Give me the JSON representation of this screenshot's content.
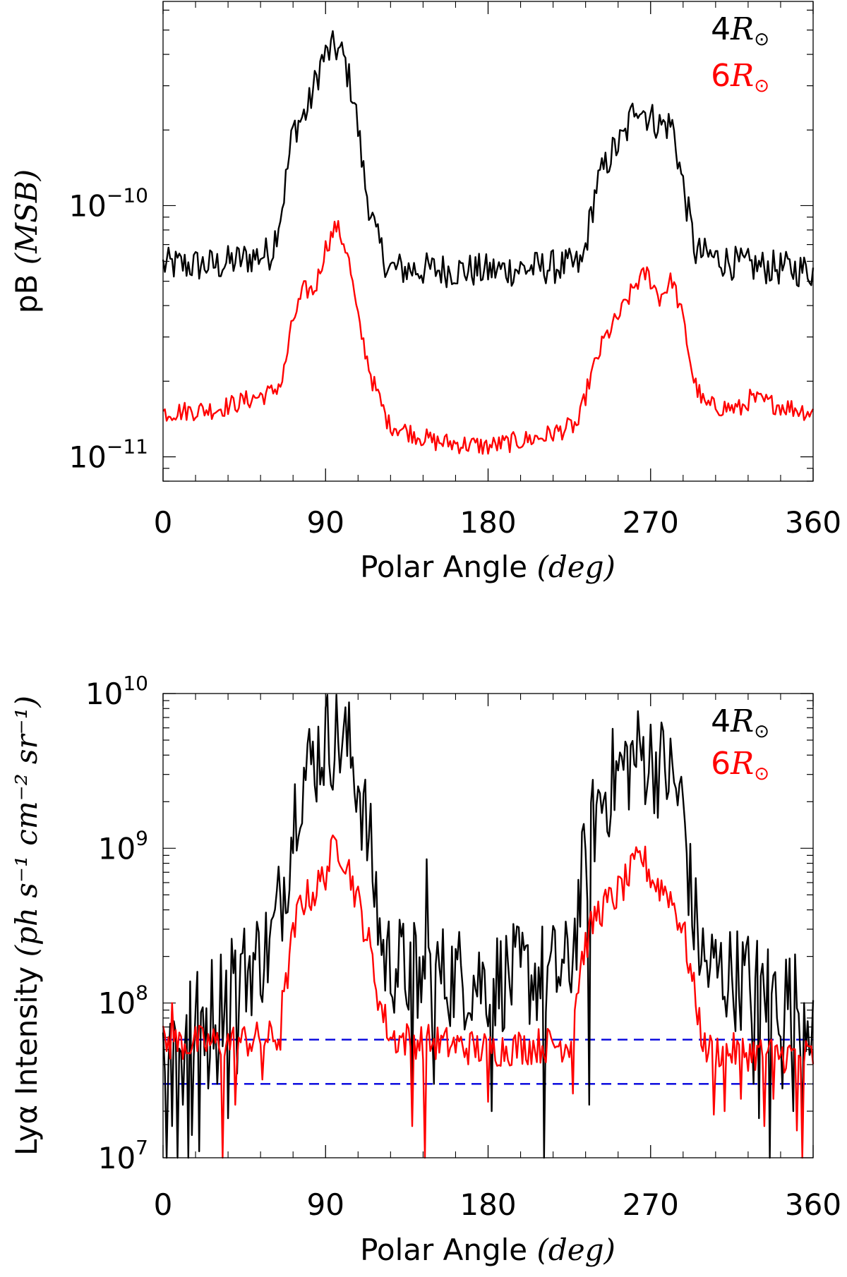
{
  "colors": {
    "black": "#000000",
    "red": "#ff0000",
    "blue": "#0000dd"
  },
  "chart_data": [
    {
      "type": "line",
      "yscale": "log",
      "xlabel_prefix": "Polar Angle ",
      "xlabel_unit": "(deg)",
      "ylabel_prefix": "pB ",
      "ylabel_unit": "(MSB)",
      "xlim": [
        0,
        360
      ],
      "ylim": [
        8e-12,
        6.5e-10
      ],
      "xticks": [
        0,
        90,
        180,
        270,
        360
      ],
      "xtick_labels": [
        "0",
        "90",
        "180",
        "270",
        "360"
      ],
      "yticks_major": [
        {
          "value": 1e-10,
          "base": "10",
          "exp": "−10"
        },
        {
          "value": 1e-11,
          "base": "10",
          "exp": "−11"
        }
      ],
      "legend": [
        {
          "coef": "4",
          "unit": "R",
          "sub": "⊙",
          "color": "#000000"
        },
        {
          "coef": "6",
          "unit": "R",
          "sub": "⊙",
          "color": "#ff0000"
        }
      ],
      "series": [
        {
          "name": "4R⊙",
          "color": "#000000",
          "profile": [
            [
              0,
              5.8e-11
            ],
            [
              30,
              5.8e-11
            ],
            [
              60,
              6.5e-11
            ],
            [
              66,
              1e-10
            ],
            [
              72,
              2e-10
            ],
            [
              80,
              2.4e-10
            ],
            [
              88,
              3.8e-10
            ],
            [
              95,
              4.3e-10
            ],
            [
              100,
              3.9e-10
            ],
            [
              106,
              2.6e-10
            ],
            [
              112,
              1.2e-10
            ],
            [
              118,
              7.5e-11
            ],
            [
              125,
              5.6e-11
            ],
            [
              180,
              5.5e-11
            ],
            [
              232,
              5.8e-11
            ],
            [
              240,
              1.2e-10
            ],
            [
              248,
              1.6e-10
            ],
            [
              256,
              1.9e-10
            ],
            [
              262,
              2.6e-10
            ],
            [
              268,
              2.3e-10
            ],
            [
              275,
              2.1e-10
            ],
            [
              282,
              2.1e-10
            ],
            [
              288,
              1.2e-10
            ],
            [
              295,
              6.5e-11
            ],
            [
              320,
              5.8e-11
            ],
            [
              360,
              5.5e-11
            ]
          ],
          "noise": 0.07
        },
        {
          "name": "6R⊙",
          "color": "#ff0000",
          "profile": [
            [
              0,
              1.5e-11
            ],
            [
              30,
              1.55e-11
            ],
            [
              60,
              1.8e-11
            ],
            [
              66,
              2e-11
            ],
            [
              72,
              3.5e-11
            ],
            [
              78,
              4.6e-11
            ],
            [
              84,
              4.6e-11
            ],
            [
              90,
              6.8e-11
            ],
            [
              96,
              8.3e-11
            ],
            [
              102,
              6.6e-11
            ],
            [
              108,
              3.5e-11
            ],
            [
              116,
              2e-11
            ],
            [
              125,
              1.35e-11
            ],
            [
              150,
              1.15e-11
            ],
            [
              180,
              1.1e-11
            ],
            [
              210,
              1.2e-11
            ],
            [
              230,
              1.35e-11
            ],
            [
              236,
              2e-11
            ],
            [
              244,
              2.9e-11
            ],
            [
              254,
              3.8e-11
            ],
            [
              262,
              4.9e-11
            ],
            [
              268,
              5.4e-11
            ],
            [
              275,
              4.3e-11
            ],
            [
              282,
              5.1e-11
            ],
            [
              288,
              3.5e-11
            ],
            [
              294,
              2e-11
            ],
            [
              300,
              1.6e-11
            ],
            [
              320,
              1.55e-11
            ],
            [
              325,
              1.7e-11
            ],
            [
              360,
              1.5e-11
            ]
          ],
          "noise": 0.04
        }
      ]
    },
    {
      "type": "line",
      "yscale": "log",
      "xlabel_prefix": "Polar Angle ",
      "xlabel_unit": "(deg)",
      "ylabel_prefix": "Lyα Intensity ",
      "ylabel_unit": "(ph s⁻¹ cm⁻² sr⁻¹)",
      "xlim": [
        0,
        360
      ],
      "ylim": [
        10000000.0,
        10000000000.0
      ],
      "xticks": [
        0,
        90,
        180,
        270,
        360
      ],
      "xtick_labels": [
        "0",
        "90",
        "180",
        "270",
        "360"
      ],
      "yticks_major": [
        {
          "value": 10000000000.0,
          "base": "10",
          "exp": "10"
        },
        {
          "value": 1000000000.0,
          "base": "10",
          "exp": "9"
        },
        {
          "value": 100000000.0,
          "base": "10",
          "exp": "8"
        },
        {
          "value": 10000000.0,
          "base": "10",
          "exp": "7"
        }
      ],
      "hlines": [
        {
          "value": 58000000.0,
          "color": "#0000dd",
          "style": "dashed"
        },
        {
          "value": 30000000.0,
          "color": "#0000dd",
          "style": "dashed"
        }
      ],
      "legend": [
        {
          "coef": "4",
          "unit": "R",
          "sub": "⊙",
          "color": "#000000"
        },
        {
          "coef": "6",
          "unit": "R",
          "sub": "⊙",
          "color": "#ff0000"
        }
      ],
      "series": [
        {
          "name": "4R⊙",
          "color": "#000000",
          "profile": [
            [
              0,
              60000000.0
            ],
            [
              20,
              80000000.0
            ],
            [
              40,
              140000000.0
            ],
            [
              60,
              240000000.0
            ],
            [
              68,
              700000000.0
            ],
            [
              75,
              2600000000.0
            ],
            [
              82,
              3500000000.0
            ],
            [
              90,
              5000000000.0
            ],
            [
              96,
              5200000000.0
            ],
            [
              102,
              4600000000.0
            ],
            [
              108,
              2800000000.0
            ],
            [
              115,
              900000000.0
            ],
            [
              122,
              200000000.0
            ],
            [
              135,
              160000000.0
            ],
            [
              180,
              140000000.0
            ],
            [
              225,
              160000000.0
            ],
            [
              232,
              600000000.0
            ],
            [
              240,
              1800000000.0
            ],
            [
              250,
              2900000000.0
            ],
            [
              258,
              3600000000.0
            ],
            [
              265,
              4100000000.0
            ],
            [
              272,
              3600000000.0
            ],
            [
              280,
              3100000000.0
            ],
            [
              288,
              1800000000.0
            ],
            [
              293,
              400000000.0
            ],
            [
              300,
              170000000.0
            ],
            [
              340,
              120000000.0
            ],
            [
              360,
              90000000.0
            ]
          ],
          "noise": 0.35,
          "dips": [
            [
              2,
              10000000.0
            ],
            [
              5,
              16000000.0
            ],
            [
              8,
              10000000.0
            ],
            [
              11,
              22000000.0
            ],
            [
              14,
              10000000.0
            ],
            [
              16,
              14000000.0
            ],
            [
              20,
              11000000.0
            ],
            [
              25,
              28000000.0
            ],
            [
              30,
              30000000.0
            ],
            [
              36,
              18000000.0
            ],
            [
              41,
              35000000.0
            ],
            [
              138,
              25000000.0
            ],
            [
              141,
              80000000.0
            ],
            [
              146,
              850000000.0
            ],
            [
              150,
              30000000.0
            ],
            [
              182,
              20000000.0
            ],
            [
              211,
              10000000.0
            ],
            [
              236,
              22000000.0
            ],
            [
              327,
              30000000.0
            ],
            [
              330,
              18000000.0
            ],
            [
              336,
              10000000.0
            ],
            [
              343,
              28000000.0
            ],
            [
              349,
              20000000.0
            ],
            [
              354,
              16000000.0
            ]
          ],
          "spikes": [
            [
              38,
              260000000.0
            ],
            [
              44,
              210000000.0
            ]
          ]
        },
        {
          "name": "6R⊙",
          "color": "#ff0000",
          "profile": [
            [
              0,
              55000000.0
            ],
            [
              30,
              55000000.0
            ],
            [
              65,
              60000000.0
            ],
            [
              70,
              200000000.0
            ],
            [
              76,
              450000000.0
            ],
            [
              84,
              520000000.0
            ],
            [
              90,
              700000000.0
            ],
            [
              96,
              1100000000.0
            ],
            [
              102,
              800000000.0
            ],
            [
              108,
              450000000.0
            ],
            [
              114,
              240000000.0
            ],
            [
              120,
              100000000.0
            ],
            [
              126,
              60000000.0
            ],
            [
              180,
              50000000.0
            ],
            [
              225,
              55000000.0
            ],
            [
              232,
              200000000.0
            ],
            [
              240,
              380000000.0
            ],
            [
              250,
              480000000.0
            ],
            [
              258,
              650000000.0
            ],
            [
              265,
              900000000.0
            ],
            [
              272,
              600000000.0
            ],
            [
              280,
              520000000.0
            ],
            [
              288,
              300000000.0
            ],
            [
              294,
              120000000.0
            ],
            [
              300,
              50000000.0
            ],
            [
              360,
              45000000.0
            ]
          ],
          "noise": 0.12,
          "dips": [
            [
              33,
              10000000.0
            ],
            [
              40,
              22000000.0
            ],
            [
              55,
              32000000.0
            ],
            [
              138,
              16000000.0
            ],
            [
              145,
              10000000.0
            ],
            [
              180,
              23000000.0
            ],
            [
              227,
              26000000.0
            ],
            [
              305,
              19000000.0
            ],
            [
              311,
              20000000.0
            ],
            [
              320,
              24000000.0
            ],
            [
              333,
              16000000.0
            ],
            [
              338,
              24000000.0
            ],
            [
              351,
              15000000.0
            ],
            [
              354,
              10000000.0
            ]
          ],
          "spikes": [
            [
              66,
              120000000.0
            ],
            [
              5,
              100000000.0
            ]
          ]
        }
      ]
    }
  ]
}
